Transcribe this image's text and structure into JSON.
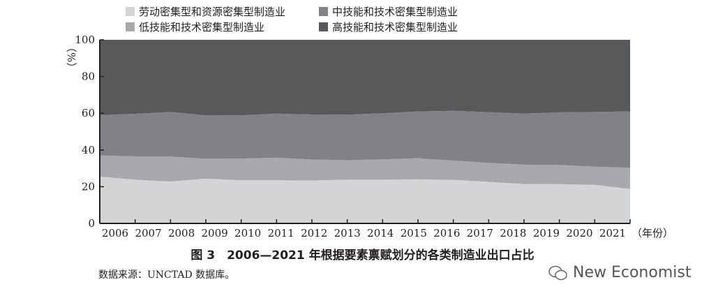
{
  "chart_data": {
    "type": "area",
    "stacked": true,
    "title": "图 3　2006—2021 年根据要素禀赋划分的各类制造业出口占比",
    "xlabel": "（年份）",
    "ylabel": "（%）",
    "ylim": [
      0,
      100
    ],
    "yticks": [
      "0",
      "20",
      "40",
      "60",
      "80",
      "100"
    ],
    "categories": [
      "2006",
      "2007",
      "2008",
      "2009",
      "2010",
      "2011",
      "2012",
      "2013",
      "2014",
      "2015",
      "2016",
      "2017",
      "2018",
      "2019",
      "2020",
      "2021"
    ],
    "series": [
      {
        "name": "劳动密集型和资源密集型制造业",
        "color": "#d3d4d6",
        "values": [
          25.5,
          23.8,
          22.8,
          24.4,
          23.5,
          23.5,
          23.4,
          23.8,
          23.8,
          24.0,
          23.7,
          22.6,
          21.5,
          21.4,
          21.0,
          18.8
        ]
      },
      {
        "name": "低技能和技术密集型制造业",
        "color": "#a8a9ac",
        "values": [
          11.5,
          12.7,
          13.6,
          10.8,
          11.8,
          12.3,
          11.4,
          10.6,
          11.1,
          11.5,
          10.5,
          10.4,
          10.5,
          10.4,
          9.9,
          11.5
        ]
      },
      {
        "name": "中技能和技术密集型制造业",
        "color": "#808285",
        "values": [
          22.0,
          23.2,
          24.3,
          23.6,
          23.6,
          24.0,
          24.5,
          24.8,
          25.1,
          25.5,
          27.1,
          27.6,
          27.8,
          28.7,
          29.8,
          30.7
        ]
      },
      {
        "name": "高技能和技术密集型制造业",
        "color": "#58595b",
        "values": [
          41.0,
          40.3,
          39.3,
          41.2,
          41.1,
          40.2,
          40.7,
          40.8,
          40.0,
          39.0,
          38.7,
          39.4,
          40.2,
          39.5,
          39.3,
          39.0
        ]
      }
    ]
  },
  "source": "数据来源：UNCTAD 数据库。",
  "watermark": "New Economist"
}
